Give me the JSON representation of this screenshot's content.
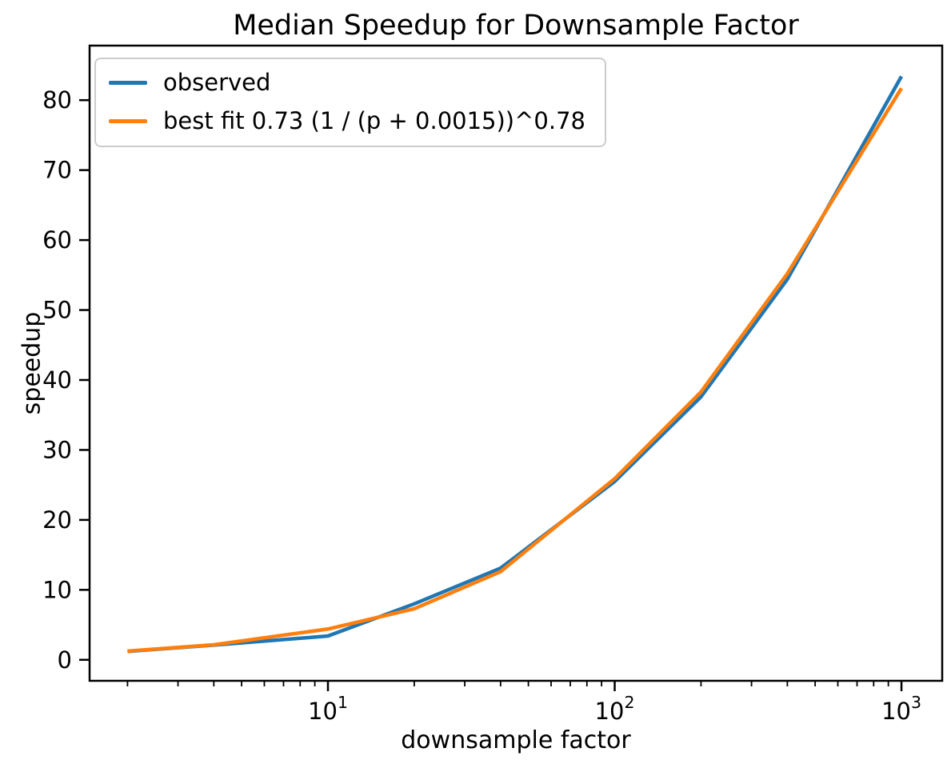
{
  "title": "Median Speedup for Downsample Factor",
  "axes": {
    "xlabel": "downsample factor",
    "ylabel": "speedup"
  },
  "legend": {
    "position": "upper left",
    "items": [
      {
        "label": "observed",
        "color": "#1f77b4"
      },
      {
        "label": "best fit 0.73 (1 / (p + 0.0015))^0.78",
        "color": "#ff7f0e"
      }
    ]
  },
  "chart_data": {
    "type": "line",
    "title": "Median Speedup for Downsample Factor",
    "xlabel": "downsample factor",
    "ylabel": "speedup",
    "xscale": "log",
    "grid": false,
    "legend_position": "upper left",
    "x": [
      2,
      4,
      10,
      20,
      40,
      100,
      200,
      400,
      1000
    ],
    "series": [
      {
        "name": "observed",
        "color": "#1f77b4",
        "values": [
          1.2,
          2.1,
          3.4,
          8.0,
          13.1,
          25.5,
          37.6,
          54.4,
          83.4
        ]
      },
      {
        "name": "best fit 0.73 (1 / (p + 0.0015))^0.78",
        "color": "#ff7f0e",
        "values": [
          1.25,
          2.15,
          4.4,
          7.3,
          12.6,
          25.9,
          38.3,
          55.2,
          81.7
        ]
      }
    ],
    "xlim": [
      1.475,
      1387
    ],
    "ylim": [
      -3,
      87.8
    ],
    "xticks": [
      {
        "value": 10,
        "base": "10",
        "exp": "1"
      },
      {
        "value": 100,
        "base": "10",
        "exp": "2"
      },
      {
        "value": 1000,
        "base": "10",
        "exp": "3"
      }
    ],
    "yticks": [
      0,
      10,
      20,
      30,
      40,
      50,
      60,
      70,
      80
    ],
    "minor_tick_mantissas": [
      2,
      3,
      4,
      5,
      6,
      7,
      8,
      9
    ],
    "axis_color": "#000000",
    "line_width": 4.5
  }
}
